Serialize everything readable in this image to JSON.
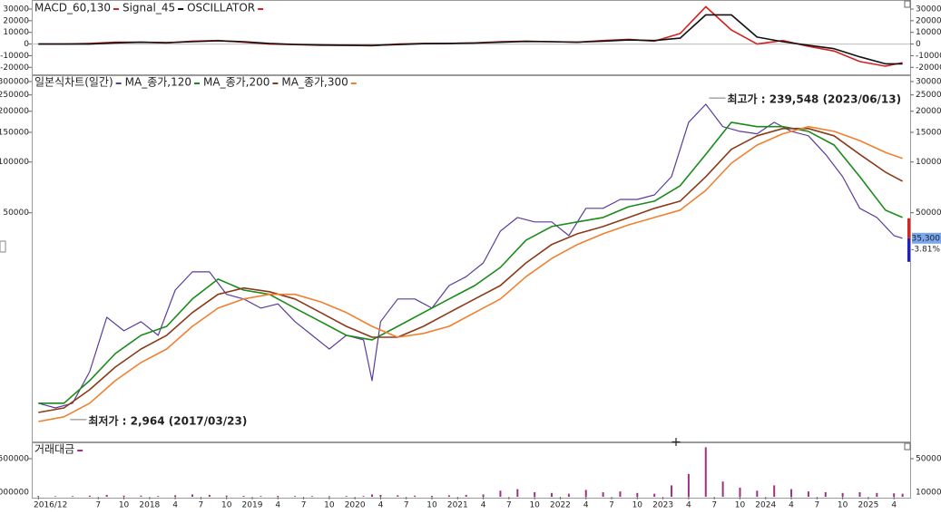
{
  "chart_data": [
    {
      "type": "line",
      "xlim": [
        "2016-11-08",
        "2025-05-28"
      ],
      "ylim": [
        -26000,
        37000
      ],
      "yticks": [
        30000,
        20000,
        10000,
        0,
        -10000,
        -20000
      ],
      "x": [
        "2016-12",
        "2017-03",
        "2017-06",
        "2017-09",
        "2017-12",
        "2018-03",
        "2018-06",
        "2018-09",
        "2018-12",
        "2019-03",
        "2019-06",
        "2019-09",
        "2019-12",
        "2020-03",
        "2020-06",
        "2020-09",
        "2020-12",
        "2021-03",
        "2021-06",
        "2021-09",
        "2021-12",
        "2022-03",
        "2022-06",
        "2022-09",
        "2022-12",
        "2023-03",
        "2023-06",
        "2023-09",
        "2023-12",
        "2024-03",
        "2024-06",
        "2024-09",
        "2024-12",
        "2025-03",
        "2025-05"
      ],
      "series": [
        {
          "name": "MACD_60,130",
          "color": "#d42020",
          "values": [
            0,
            0,
            500,
            1500,
            1500,
            1000,
            2500,
            3000,
            1500,
            0,
            -500,
            -1000,
            -1000,
            -1500,
            0,
            500,
            500,
            1000,
            2000,
            2500,
            2000,
            1500,
            3000,
            4000,
            2500,
            9000,
            32000,
            12000,
            0,
            3000,
            -2000,
            -6000,
            -15000,
            -19000,
            -16000
          ]
        },
        {
          "name": "Signal_45",
          "color": "#111111",
          "values": [
            0,
            0,
            0,
            1000,
            1500,
            1200,
            2000,
            2800,
            2000,
            500,
            -300,
            -800,
            -1000,
            -1200,
            -500,
            300,
            500,
            800,
            1500,
            2200,
            2000,
            1600,
            2500,
            3500,
            3000,
            5000,
            25000,
            25000,
            6000,
            2000,
            -1000,
            -4000,
            -11000,
            -17000,
            -17000
          ]
        }
      ],
      "oscillator": {
        "name": "OSCILLATOR",
        "color": "#d42020"
      }
    },
    {
      "type": "line",
      "log_scale": true,
      "xlim": [
        "2016-11-08",
        "2025-05-28"
      ],
      "ylim": [
        2200,
        327000
      ],
      "yticks": [
        300000,
        250000,
        200000,
        150000,
        100000,
        50000
      ],
      "x": [
        "2016-12",
        "2017-03",
        "2017-06",
        "2017-09",
        "2017-12",
        "2018-03",
        "2018-06",
        "2018-09",
        "2018-12",
        "2019-03",
        "2019-06",
        "2019-09",
        "2019-12",
        "2020-03",
        "2020-06",
        "2020-09",
        "2020-12",
        "2021-03",
        "2021-06",
        "2021-09",
        "2021-12",
        "2022-03",
        "2022-06",
        "2022-09",
        "2022-12",
        "2023-03",
        "2023-06",
        "2023-09",
        "2023-12",
        "2024-03",
        "2024-06",
        "2024-09",
        "2024-12",
        "2025-03",
        "2025-05"
      ],
      "series": [
        {
          "name": "일본식차트(일간)",
          "color": "#5a3c9c",
          "x": [
            "2016-12",
            "2017-02",
            "2017-04",
            "2017-06",
            "2017-08",
            "2017-10",
            "2017-12",
            "2018-02",
            "2018-04",
            "2018-06",
            "2018-08",
            "2018-10",
            "2018-12",
            "2019-02",
            "2019-04",
            "2019-06",
            "2019-08",
            "2019-10",
            "2019-12",
            "2020-02",
            "2020-03",
            "2020-04",
            "2020-06",
            "2020-08",
            "2020-10",
            "2020-12",
            "2021-02",
            "2021-04",
            "2021-06",
            "2021-08",
            "2021-10",
            "2021-12",
            "2022-02",
            "2022-04",
            "2022-06",
            "2022-08",
            "2022-10",
            "2022-12",
            "2023-02",
            "2023-04",
            "2023-06",
            "2023-08",
            "2023-10",
            "2023-12",
            "2024-02",
            "2024-04",
            "2024-06",
            "2024-08",
            "2024-10",
            "2024-12",
            "2025-02",
            "2025-04",
            "2025-05"
          ],
          "values": [
            3710,
            3480,
            3710,
            5710,
            12000,
            9980,
            11300,
            9380,
            17400,
            22300,
            22300,
            16400,
            15400,
            13600,
            14400,
            11300,
            9380,
            7780,
            9380,
            8810,
            5050,
            11300,
            15400,
            15400,
            13600,
            18500,
            20900,
            25200,
            38900,
            46900,
            44100,
            44100,
            36600,
            53100,
            53100,
            60000,
            60000,
            63800,
            81800,
            172000,
            220000,
            162000,
            152000,
            147000,
            172000,
            152000,
            143000,
            111000,
            81800,
            53100,
            46900,
            36600,
            35300
          ]
        },
        {
          "name": "MA_종가,120",
          "color": "#1a8a1a",
          "values": [
            3710,
            3710,
            5050,
            7310,
            9380,
            10600,
            15400,
            20200,
            17400,
            16400,
            13600,
            11300,
            9380,
            8810,
            10600,
            12800,
            15400,
            18500,
            23700,
            34400,
            41400,
            44100,
            46900,
            54300,
            58600,
            72300,
            111000,
            172000,
            162000,
            162000,
            152000,
            126000,
            81800,
            51800,
            46900
          ]
        },
        {
          "name": "MA_종가,200",
          "color": "#8b3a1a",
          "values": [
            3270,
            3480,
            4460,
            6080,
            7780,
            9380,
            12800,
            16400,
            17900,
            17000,
            15400,
            12800,
            10600,
            9140,
            9140,
            10600,
            12800,
            15400,
            18500,
            25200,
            32400,
            37500,
            41400,
            46900,
            53100,
            58600,
            81800,
            119000,
            143000,
            158000,
            158000,
            143000,
            111000,
            87100,
            76900
          ]
        },
        {
          "name": "MA_종가,300",
          "color": "#f08030",
          "values": [
            2890,
            3080,
            3710,
            5050,
            6470,
            7780,
            10600,
            13600,
            15400,
            16400,
            16400,
            14800,
            12800,
            10600,
            9140,
            9620,
            10600,
            12800,
            15400,
            20900,
            26800,
            32400,
            37500,
            42400,
            46900,
            51800,
            67900,
            98400,
            126000,
            147000,
            162000,
            152000,
            134000,
            114000,
            105000
          ]
        }
      ],
      "annotations": [
        {
          "text": "최고가 : 239,548 (2023/06/13)",
          "value": 239548,
          "date": "2023-06-13",
          "color": "#e02020"
        },
        {
          "text": "최저가 : 2,964 (2017/03/23)",
          "value": 2964,
          "date": "2017-03-23",
          "color": "#1e2ab4"
        }
      ],
      "last_price": {
        "value": 35300,
        "label": "35,300",
        "change": "-3.81%"
      }
    },
    {
      "type": "bar",
      "title": "거래대금",
      "color": "#a03080",
      "xlim": [
        "2016-11-08",
        "2025-05-28"
      ],
      "ylim": [
        0,
        714000
      ],
      "yticks": [
        500000
      ],
      "scale_label": "1000000",
      "x": [
        "2016-12",
        "2017-02",
        "2017-04",
        "2017-06",
        "2017-08",
        "2017-10",
        "2017-12",
        "2018-02",
        "2018-04",
        "2018-06",
        "2018-08",
        "2018-10",
        "2018-12",
        "2019-02",
        "2019-04",
        "2019-06",
        "2019-08",
        "2019-10",
        "2019-12",
        "2020-02",
        "2020-03",
        "2020-04",
        "2020-06",
        "2020-08",
        "2020-10",
        "2020-12",
        "2021-02",
        "2021-04",
        "2021-06",
        "2021-08",
        "2021-10",
        "2021-12",
        "2022-02",
        "2022-04",
        "2022-06",
        "2022-08",
        "2022-10",
        "2022-12",
        "2023-02",
        "2023-04",
        "2023-06",
        "2023-08",
        "2023-10",
        "2023-12",
        "2024-02",
        "2024-04",
        "2024-06",
        "2024-08",
        "2024-10",
        "2024-12",
        "2025-02",
        "2025-04",
        "2025-05"
      ],
      "values": [
        10000,
        8000,
        8000,
        15000,
        25000,
        15000,
        15000,
        10000,
        20000,
        30000,
        25000,
        15000,
        12000,
        10000,
        12000,
        10000,
        8000,
        8000,
        10000,
        10000,
        30000,
        25000,
        20000,
        15000,
        12000,
        20000,
        25000,
        30000,
        80000,
        100000,
        60000,
        50000,
        40000,
        90000,
        60000,
        70000,
        50000,
        40000,
        150000,
        300000,
        650000,
        200000,
        120000,
        80000,
        150000,
        100000,
        70000,
        60000,
        50000,
        60000,
        50000,
        45000,
        40000
      ],
      "xticks": [
        {
          "value": "2016-12",
          "label": "2016/12"
        },
        {
          "value": "2017-07",
          "label": "7"
        },
        {
          "value": "2017-10",
          "label": "10"
        },
        {
          "value": "2018-01",
          "label": "2018"
        },
        {
          "value": "2018-04",
          "label": "4"
        },
        {
          "value": "2018-07",
          "label": "7"
        },
        {
          "value": "2018-10",
          "label": "10"
        },
        {
          "value": "2019-01",
          "label": "2019"
        },
        {
          "value": "2019-04",
          "label": "4"
        },
        {
          "value": "2019-07",
          "label": "7"
        },
        {
          "value": "2019-10",
          "label": "10"
        },
        {
          "value": "2020-01",
          "label": "2020"
        },
        {
          "value": "2020-04",
          "label": "4"
        },
        {
          "value": "2020-07",
          "label": "7"
        },
        {
          "value": "2020-10",
          "label": "10"
        },
        {
          "value": "2021-01",
          "label": "2021"
        },
        {
          "value": "2021-04",
          "label": "4"
        },
        {
          "value": "2021-07",
          "label": "7"
        },
        {
          "value": "2021-10",
          "label": "10"
        },
        {
          "value": "2022-01",
          "label": "2022"
        },
        {
          "value": "2022-04",
          "label": "4"
        },
        {
          "value": "2022-07",
          "label": "7"
        },
        {
          "value": "2022-10",
          "label": "10"
        },
        {
          "value": "2023-01",
          "label": "2023"
        },
        {
          "value": "2023-04",
          "label": "4"
        },
        {
          "value": "2023-07",
          "label": "7"
        },
        {
          "value": "2023-10",
          "label": "10"
        },
        {
          "value": "2024-01",
          "label": "2024"
        },
        {
          "value": "2024-04",
          "label": "4"
        },
        {
          "value": "2024-07",
          "label": "7"
        },
        {
          "value": "2024-10",
          "label": "10"
        },
        {
          "value": "2025-01",
          "label": "2025"
        },
        {
          "value": "2025-04",
          "label": "4"
        }
      ]
    }
  ]
}
